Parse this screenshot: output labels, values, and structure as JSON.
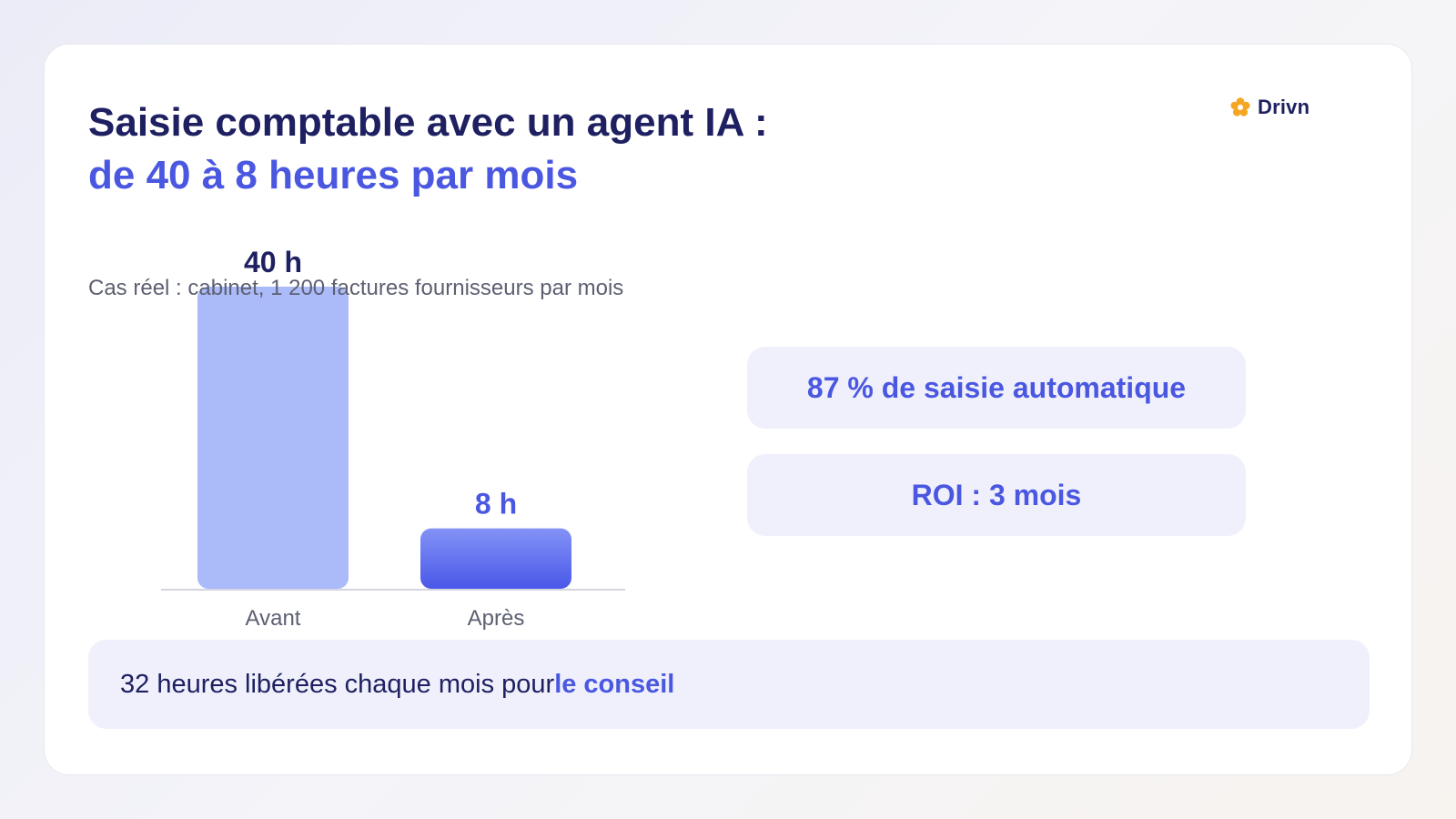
{
  "title": {
    "line1": "Saisie comptable avec un agent IA :",
    "line2": "de 40 à 8 heures par mois"
  },
  "logo": {
    "text": "Drivn",
    "icon": "flower-icon",
    "icon_color": "#f5a623"
  },
  "subtitle": "Cas réel : cabinet, 1 200 factures fournisseurs par mois",
  "chart_data": {
    "type": "bar",
    "categories": [
      "Avant",
      "Après"
    ],
    "values": [
      40,
      8
    ],
    "value_labels": [
      "40 h",
      "8 h"
    ],
    "ylim": [
      0,
      40
    ],
    "grid": false,
    "colors": [
      "#abbaf8",
      "#5360ec"
    ],
    "label_colors": [
      "#1e2061",
      "#4a57e1"
    ]
  },
  "metrics": [
    {
      "label": "87 % de saisie automatique"
    },
    {
      "label": "ROI : 3 mois"
    }
  ],
  "footer": {
    "text": "32 heures libérées chaque mois pour ",
    "highlight": "le conseil"
  },
  "colors": {
    "primary": "#4a57e1",
    "navy": "#1e2061",
    "light_panel": "#eff0fb"
  }
}
